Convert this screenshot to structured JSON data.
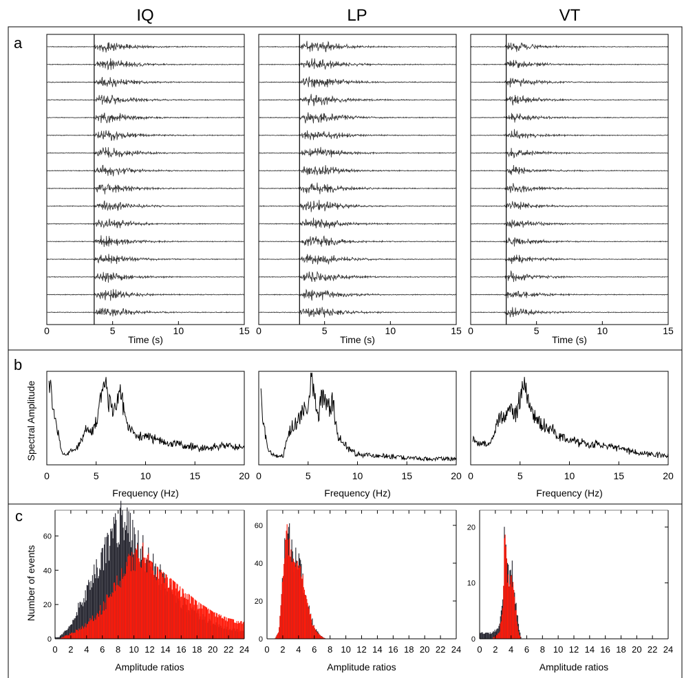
{
  "columns": [
    "IQ",
    "LP",
    "VT"
  ],
  "panel_letters": [
    "a",
    "b",
    "c"
  ],
  "colors": {
    "trace": "#3a3a3a",
    "spectrum": "#000000",
    "hist_dark": "#262630",
    "hist_red": "#ff1a0a"
  },
  "chart_data": [
    {
      "panel": "a",
      "type": "line",
      "description_kind": "seismogram stacks (16 traces per event class)",
      "xlabel": "Time (s)",
      "xlim": [
        0,
        15
      ],
      "xticks": [
        0,
        5,
        10,
        15
      ],
      "traces_per_plot": 16,
      "series": [
        {
          "name": "IQ",
          "onset_s": 3.5,
          "burst_center_s": 5.0,
          "burst_end_s": 8.0
        },
        {
          "name": "LP",
          "onset_s": 3.0,
          "burst_center_s": 5.0,
          "burst_end_s": 8.5
        },
        {
          "name": "VT",
          "onset_s": 2.5,
          "burst_center_s": 3.3,
          "burst_end_s": 7.5
        }
      ]
    },
    {
      "panel": "b",
      "type": "line",
      "xlabel": "Frequency (Hz)",
      "ylabel": "Spectral Amplitude",
      "xlim": [
        0,
        20
      ],
      "xticks": [
        0,
        5,
        10,
        15,
        20
      ],
      "series": [
        {
          "name": "IQ",
          "points": [
            [
              0.2,
              1.0
            ],
            [
              0.8,
              0.55
            ],
            [
              1.5,
              0.12
            ],
            [
              2,
              0.07
            ],
            [
              3,
              0.14
            ],
            [
              3.5,
              0.25
            ],
            [
              4,
              0.4
            ],
            [
              4.5,
              0.32
            ],
            [
              5,
              0.45
            ],
            [
              5.5,
              0.8
            ],
            [
              6,
              0.95
            ],
            [
              6.3,
              0.7
            ],
            [
              7,
              0.6
            ],
            [
              7.5,
              0.85
            ],
            [
              8,
              0.45
            ],
            [
              9,
              0.3
            ],
            [
              10,
              0.3
            ],
            [
              12,
              0.22
            ],
            [
              14,
              0.18
            ],
            [
              16,
              0.15
            ],
            [
              18,
              0.18
            ],
            [
              20,
              0.15
            ]
          ]
        },
        {
          "name": "LP",
          "points": [
            [
              0.2,
              0.9
            ],
            [
              0.5,
              0.4
            ],
            [
              1,
              0.1
            ],
            [
              1.5,
              0.06
            ],
            [
              2.5,
              0.06
            ],
            [
              3,
              0.35
            ],
            [
              4,
              0.5
            ],
            [
              4.5,
              0.6
            ],
            [
              5,
              0.7
            ],
            [
              5.3,
              1.0
            ],
            [
              6,
              0.55
            ],
            [
              6.5,
              0.8
            ],
            [
              7,
              0.65
            ],
            [
              7.5,
              0.7
            ],
            [
              8,
              0.3
            ],
            [
              9,
              0.15
            ],
            [
              10,
              0.08
            ],
            [
              12,
              0.06
            ],
            [
              14,
              0.04
            ],
            [
              16,
              0.03
            ],
            [
              18,
              0.02
            ],
            [
              20,
              0.02
            ]
          ]
        },
        {
          "name": "VT",
          "points": [
            [
              0.2,
              0.25
            ],
            [
              1,
              0.2
            ],
            [
              2,
              0.2
            ],
            [
              3,
              0.55
            ],
            [
              3.5,
              0.5
            ],
            [
              4,
              0.7
            ],
            [
              4.5,
              0.55
            ],
            [
              5,
              0.75
            ],
            [
              5.5,
              1.0
            ],
            [
              6,
              0.6
            ],
            [
              7,
              0.45
            ],
            [
              8,
              0.4
            ],
            [
              9,
              0.3
            ],
            [
              10,
              0.25
            ],
            [
              12,
              0.2
            ],
            [
              14,
              0.18
            ],
            [
              16,
              0.12
            ],
            [
              18,
              0.08
            ],
            [
              20,
              0.06
            ]
          ]
        }
      ]
    },
    {
      "panel": "c",
      "type": "bar",
      "xlabel": "Amplitude ratios",
      "ylabel": "Number of events",
      "xlim": [
        0,
        24
      ],
      "xticks": [
        0,
        2,
        4,
        6,
        8,
        10,
        12,
        14,
        16,
        18,
        20,
        22,
        24
      ],
      "series": [
        {
          "name": "IQ",
          "ylim": [
            0,
            75
          ],
          "yticks": [
            0,
            20,
            40,
            60
          ],
          "dark_curve": [
            [
              0.5,
              1
            ],
            [
              2,
              8
            ],
            [
              4,
              28
            ],
            [
              6,
              48
            ],
            [
              7,
              58
            ],
            [
              8,
              66
            ],
            [
              8.5,
              70
            ],
            [
              9,
              66
            ],
            [
              10,
              58
            ],
            [
              12,
              45
            ],
            [
              14,
              32
            ],
            [
              16,
              22
            ],
            [
              18,
              14
            ],
            [
              20,
              9
            ],
            [
              22,
              6
            ],
            [
              24,
              4
            ]
          ],
          "red_curve": [
            [
              0.5,
              0
            ],
            [
              2,
              3
            ],
            [
              4,
              8
            ],
            [
              6,
              18
            ],
            [
              8,
              32
            ],
            [
              9,
              40
            ],
            [
              10,
              45
            ],
            [
              11,
              48
            ],
            [
              12,
              46
            ],
            [
              14,
              38
            ],
            [
              16,
              30
            ],
            [
              18,
              22
            ],
            [
              20,
              16
            ],
            [
              22,
              12
            ],
            [
              24,
              10
            ]
          ]
        },
        {
          "name": "LP",
          "ylim": [
            0,
            68
          ],
          "yticks": [
            0,
            20,
            40,
            60
          ],
          "dark_curve": [
            [
              1,
              0
            ],
            [
              1.5,
              4
            ],
            [
              2,
              30
            ],
            [
              2.5,
              62
            ],
            [
              3,
              48
            ],
            [
              3.5,
              40
            ],
            [
              4,
              42
            ],
            [
              4.5,
              32
            ],
            [
              5,
              22
            ],
            [
              5.5,
              12
            ],
            [
              6,
              6
            ],
            [
              6.5,
              3
            ],
            [
              7,
              1
            ],
            [
              7.5,
              0
            ]
          ],
          "red_curve": [
            [
              1,
              0
            ],
            [
              1.5,
              4
            ],
            [
              2,
              30
            ],
            [
              2.5,
              62
            ],
            [
              3,
              48
            ],
            [
              3.5,
              40
            ],
            [
              4,
              42
            ],
            [
              4.5,
              32
            ],
            [
              5,
              22
            ],
            [
              5.5,
              12
            ],
            [
              6,
              6
            ],
            [
              6.5,
              3
            ],
            [
              7,
              1
            ],
            [
              7.5,
              0
            ]
          ]
        },
        {
          "name": "VT",
          "ylim": [
            0,
            23
          ],
          "yticks": [
            0,
            10,
            20
          ],
          "dark_curve": [
            [
              0.5,
              1
            ],
            [
              1.5,
              1
            ],
            [
              2.5,
              2
            ],
            [
              3,
              8
            ],
            [
              3.2,
              22
            ],
            [
              3.5,
              14
            ],
            [
              3.8,
              10
            ],
            [
              4.2,
              12
            ],
            [
              4.6,
              6
            ],
            [
              5,
              2
            ],
            [
              5.3,
              0
            ]
          ],
          "red_curve": [
            [
              0.5,
              0
            ],
            [
              1.5,
              0
            ],
            [
              2.5,
              1
            ],
            [
              3,
              6
            ],
            [
              3.2,
              20
            ],
            [
              3.5,
              13
            ],
            [
              3.8,
              9
            ],
            [
              4.2,
              11
            ],
            [
              4.6,
              5
            ],
            [
              5,
              1
            ],
            [
              5.3,
              0
            ]
          ]
        }
      ]
    }
  ]
}
